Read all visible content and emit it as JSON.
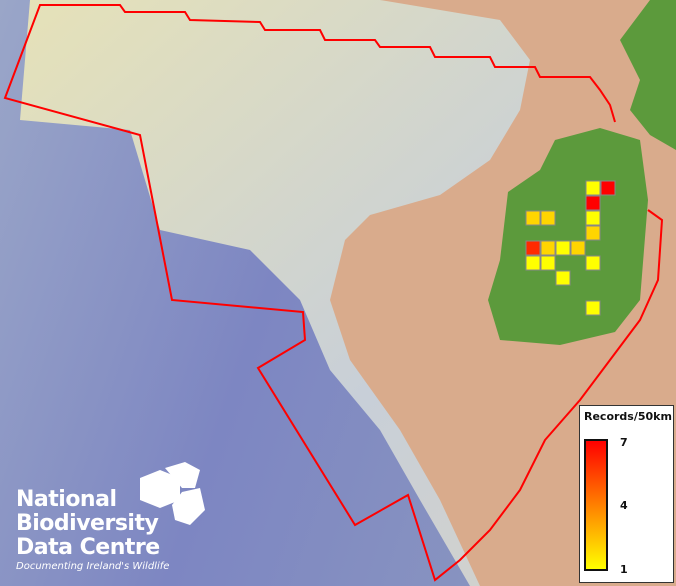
{
  "legend": {
    "title": "Records/50km",
    "max": "7",
    "mid": "4",
    "min": "1",
    "colors": {
      "high": "#ff0000",
      "low": "#ffff00"
    }
  },
  "logo": {
    "line1": "National",
    "line2": "Biodiversity",
    "line3": "Data Centre",
    "tagline": "Documenting Ireland's Wildlife"
  },
  "colors": {
    "boundary": "#ff0000",
    "cell_border": "#888888",
    "land": "#d9ab8c",
    "ireland": "#5c9a3c",
    "ocean": "#7e88c0"
  },
  "records": [
    {
      "records": 1
    },
    {
      "records": 7
    },
    {
      "records": 7
    },
    {
      "records": 2
    },
    {
      "records": 2
    },
    {
      "records": 1
    },
    {
      "records": 2
    },
    {
      "records": 6
    },
    {
      "records": 2
    },
    {
      "records": 1
    },
    {
      "records": 2
    },
    {
      "records": 1
    },
    {
      "records": 1
    },
    {
      "records": 1
    },
    {
      "records": 1
    },
    {
      "records": 1
    }
  ]
}
